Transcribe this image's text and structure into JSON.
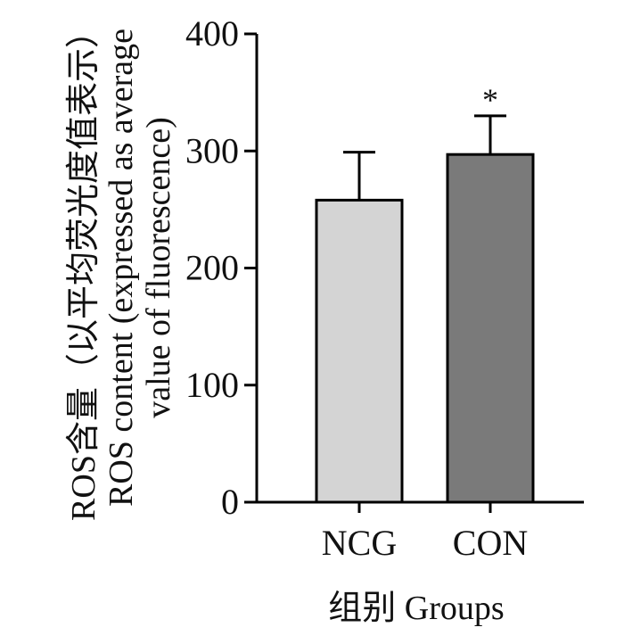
{
  "chart_data": {
    "type": "bar",
    "categories": [
      "NCG",
      "CON"
    ],
    "values": [
      258,
      297
    ],
    "error_upper": [
      299,
      330
    ],
    "significance": [
      "",
      "*"
    ],
    "colors": [
      "#d4d4d4",
      "#7a7a7a"
    ],
    "ylim": [
      0,
      400
    ],
    "yticks": [
      0,
      100,
      200,
      300,
      400
    ],
    "xlabel": "组别  Groups",
    "ylabel_lines": [
      "ROS含量（以平均荧光度值表示）",
      "ROS content (expressed as average",
      "value of fluorescence)"
    ],
    "grid": false
  }
}
